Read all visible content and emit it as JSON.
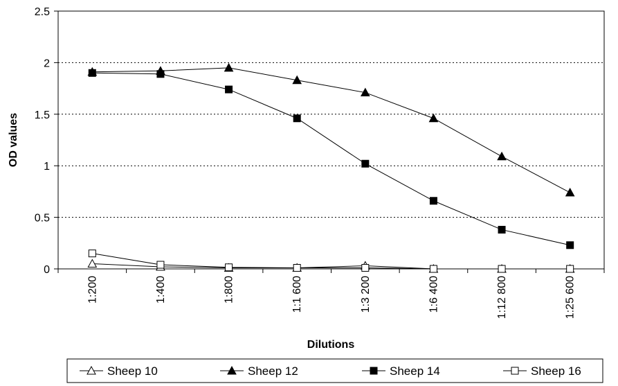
{
  "chart_data": {
    "type": "line",
    "title": "",
    "xlabel": "Dilutions",
    "ylabel": "OD values",
    "categories": [
      "1:200",
      "1:400",
      "1:800",
      "1:1 600",
      "1:3 200",
      "1:6 400",
      "1:12 800",
      "1:25 600"
    ],
    "ylim": [
      0,
      2.5
    ],
    "yticks": [
      "0",
      "0.5",
      "1",
      "1.5",
      "2",
      "2.5"
    ],
    "y_tick_values": [
      0,
      0.5,
      1,
      1.5,
      2,
      2.5
    ],
    "grid": "horizontal dotted",
    "legend_position": "bottom",
    "series": [
      {
        "name": "Sheep 10",
        "marker": "triangle-open",
        "values": [
          0.05,
          0.02,
          0.01,
          0.01,
          0.03,
          0.0,
          0.0,
          0.0
        ]
      },
      {
        "name": "Sheep 12",
        "marker": "triangle-filled",
        "values": [
          1.91,
          1.92,
          1.95,
          1.83,
          1.71,
          1.46,
          1.09,
          0.74
        ]
      },
      {
        "name": "Sheep 14",
        "marker": "square-filled",
        "values": [
          1.9,
          1.89,
          1.74,
          1.46,
          1.02,
          0.66,
          0.38,
          0.23
        ]
      },
      {
        "name": "Sheep 16",
        "marker": "square-open",
        "values": [
          0.15,
          0.04,
          0.015,
          0.01,
          0.01,
          0.0,
          0.0,
          0.0
        ]
      }
    ]
  }
}
